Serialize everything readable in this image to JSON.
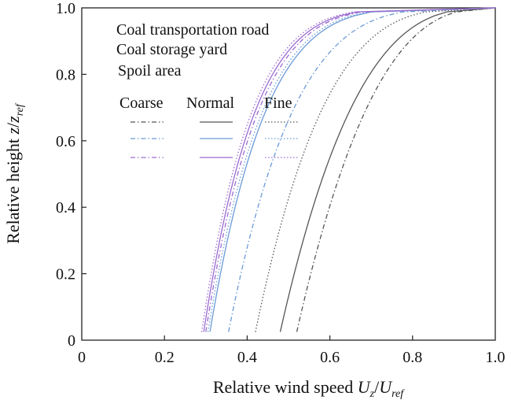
{
  "chart_data": {
    "type": "line",
    "xlabel": {
      "main": "Relative wind speed ",
      "U": "U",
      "z": "z",
      "slash": "/",
      "U2": "U",
      "ref": "ref"
    },
    "ylabel": {
      "main": "Relative height ",
      "z": "z",
      "slash": "/",
      "z2": "z",
      "ref": "ref"
    },
    "xlim": [
      0,
      1.0
    ],
    "ylim": [
      0,
      1.0
    ],
    "xticks": [
      "0",
      "0.2",
      "0.4",
      "0.6",
      "0.8",
      "1.0"
    ],
    "yticks": [
      "0",
      "0.2",
      "0.4",
      "0.6",
      "0.8",
      "1.0"
    ],
    "legend": {
      "categories": [
        "Coal transportation road",
        "Coal storage yard",
        "Spoil area"
      ],
      "columns": [
        "Coarse",
        "Normal",
        "Fine"
      ]
    },
    "colors": {
      "road": "#555555",
      "yard": "#6a9ad6",
      "spoil": "#9b6bd0"
    },
    "y_min": 0.025,
    "series": [
      {
        "category": "Coal transportation road",
        "roughness": "Coarse",
        "color": "#555555",
        "style": "dashdot",
        "x_at_ymin": 0.52,
        "exponent": 0.37
      },
      {
        "category": "Coal transportation road",
        "roughness": "Normal",
        "color": "#555555",
        "style": "solid",
        "x_at_ymin": 0.48,
        "exponent": 0.34
      },
      {
        "category": "Coal transportation road",
        "roughness": "Fine",
        "color": "#555555",
        "style": "dotted",
        "x_at_ymin": 0.42,
        "exponent": 0.28
      },
      {
        "category": "Coal storage yard",
        "roughness": "Coarse",
        "color": "#6a9ad6",
        "style": "dashdot",
        "x_at_ymin": 0.355,
        "exponent": 0.24
      },
      {
        "category": "Coal storage yard",
        "roughness": "Normal",
        "color": "#6a9ad6",
        "style": "solid",
        "x_at_ymin": 0.31,
        "exponent": 0.19
      },
      {
        "category": "Coal storage yard",
        "roughness": "Fine",
        "color": "#6a9ad6",
        "style": "dotted",
        "x_at_ymin": 0.305,
        "exponent": 0.185
      },
      {
        "category": "Spoil area",
        "roughness": "Coarse",
        "color": "#9b6bd0",
        "style": "dashdot",
        "x_at_ymin": 0.3,
        "exponent": 0.175
      },
      {
        "category": "Spoil area",
        "roughness": "Normal",
        "color": "#9b6bd0",
        "style": "solid",
        "x_at_ymin": 0.295,
        "exponent": 0.17
      },
      {
        "category": "Spoil area",
        "roughness": "Fine",
        "color": "#9b6bd0",
        "style": "dotted",
        "x_at_ymin": 0.29,
        "exponent": 0.165
      }
    ]
  }
}
